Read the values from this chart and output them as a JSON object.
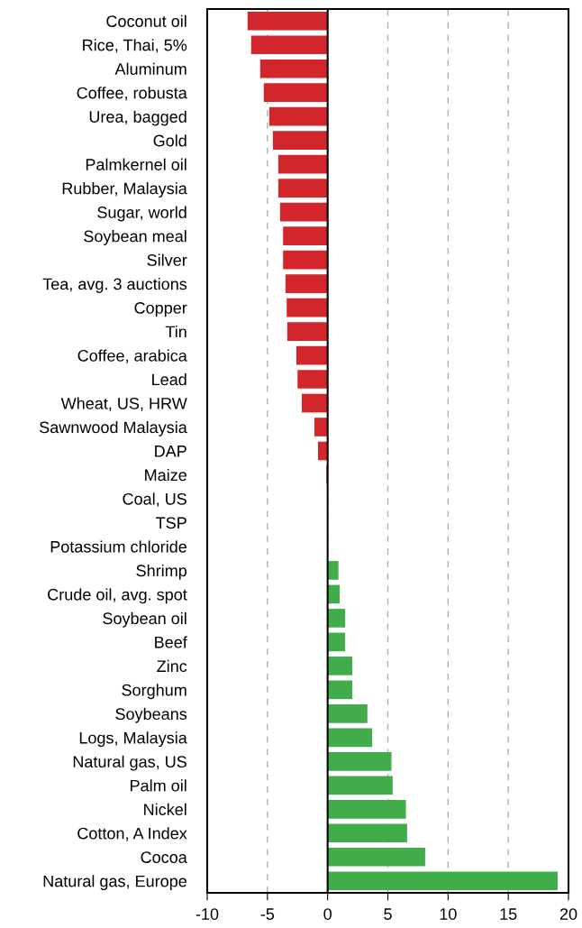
{
  "chart_data": {
    "type": "bar",
    "orientation": "horizontal",
    "categories": [
      "Coconut oil",
      "Rice, Thai, 5%",
      "Aluminum",
      "Coffee, robusta",
      "Urea, bagged",
      "Gold",
      "Palmkernel oil",
      "Rubber, Malaysia",
      "Sugar, world",
      "Soybean meal",
      "Silver",
      "Tea, avg. 3 auctions",
      "Copper",
      "Tin",
      "Coffee, arabica",
      "Lead",
      "Wheat, US, HRW",
      "Sawnwood Malaysia",
      "DAP",
      "Maize",
      "Coal, US",
      "TSP",
      "Potassium chloride",
      "Shrimp",
      "Crude oil, avg. spot",
      "Soybean oil",
      "Beef",
      "Zinc",
      "Sorghum",
      "Soybeans",
      "Logs, Malaysia",
      "Natural gas, US",
      "Palm oil",
      "Nickel",
      "Cotton, A Index",
      "Cocoa",
      "Natural gas, Europe"
    ],
    "values": [
      -6.65,
      -6.35,
      -5.6,
      -5.3,
      -4.85,
      -4.55,
      -4.1,
      -4.1,
      -3.95,
      -3.7,
      -3.7,
      -3.5,
      -3.4,
      -3.35,
      -2.6,
      -2.5,
      -2.15,
      -1.1,
      -0.8,
      -0.1,
      0,
      0,
      0,
      0.9,
      1.0,
      1.45,
      1.45,
      2.05,
      2.05,
      3.3,
      3.7,
      5.3,
      5.4,
      6.5,
      6.6,
      8.1,
      19.1
    ],
    "colors": [
      "#d2262c",
      "#d2262c",
      "#d2262c",
      "#d2262c",
      "#d2262c",
      "#d2262c",
      "#d2262c",
      "#d2262c",
      "#d2262c",
      "#d2262c",
      "#d2262c",
      "#d2262c",
      "#d2262c",
      "#d2262c",
      "#d2262c",
      "#d2262c",
      "#d2262c",
      "#d2262c",
      "#d2262c",
      "#d2262c",
      "#d2262c",
      "#d2262c",
      "#d2262c",
      "#41ad4a",
      "#41ad4a",
      "#41ad4a",
      "#41ad4a",
      "#41ad4a",
      "#41ad4a",
      "#41ad4a",
      "#41ad4a",
      "#41ad4a",
      "#41ad4a",
      "#41ad4a",
      "#41ad4a",
      "#41ad4a",
      "#41ad4a"
    ],
    "xlim": [
      -10,
      20
    ],
    "xticks": [
      -10,
      -5,
      0,
      5,
      10,
      15,
      20
    ],
    "grid": "x",
    "ref_lines": [
      {
        "axis": "x",
        "value": 0,
        "color": "#000000",
        "line_style": "solid"
      }
    ]
  }
}
